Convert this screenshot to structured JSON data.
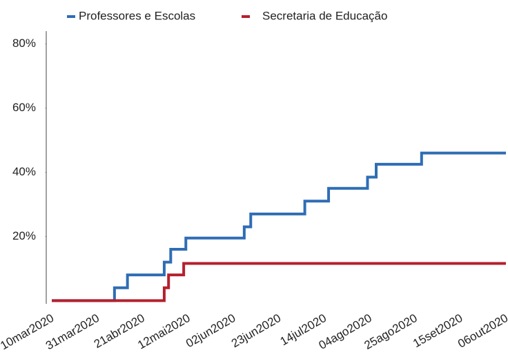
{
  "chart_data": {
    "type": "step",
    "step": "post",
    "series": [
      {
        "name": "Professores e Escolas",
        "color": "#2f6db5",
        "x": [
          "2020-03-10",
          "2020-04-08",
          "2020-04-14",
          "2020-05-01",
          "2020-05-04",
          "2020-05-11",
          "2020-06-07",
          "2020-06-10",
          "2020-07-05",
          "2020-07-16",
          "2020-08-03",
          "2020-08-07",
          "2020-08-28",
          "2020-10-06"
        ],
        "values": [
          0,
          4,
          8,
          12,
          16,
          19.5,
          23,
          27,
          31,
          35,
          38.5,
          42.5,
          46,
          46
        ]
      },
      {
        "name": "Secretaria de Educação",
        "color": "#b5202e",
        "x": [
          "2020-03-10",
          "2020-05-01",
          "2020-05-03",
          "2020-05-10",
          "2020-10-06"
        ],
        "values": [
          0,
          4,
          8,
          11.6,
          11.6
        ]
      }
    ],
    "xlim": [
      "2020-03-10",
      "2020-10-06"
    ],
    "xticks": [
      {
        "value": "2020-03-10",
        "label": "10mar2020"
      },
      {
        "value": "2020-03-31",
        "label": "31mar2020"
      },
      {
        "value": "2020-04-21",
        "label": "21abr2020"
      },
      {
        "value": "2020-05-12",
        "label": "12mai2020"
      },
      {
        "value": "2020-06-02",
        "label": "02jun2020"
      },
      {
        "value": "2020-06-23",
        "label": "23jun2020"
      },
      {
        "value": "2020-07-14",
        "label": "14jul2020"
      },
      {
        "value": "2020-08-04",
        "label": "04ago2020"
      },
      {
        "value": "2020-08-25",
        "label": "25ago2020"
      },
      {
        "value": "2020-09-15",
        "label": "15set2020"
      },
      {
        "value": "2020-10-06",
        "label": "06out2020"
      }
    ],
    "ylim": [
      -1,
      84
    ],
    "yticks": [
      {
        "value": 20,
        "label": "20%"
      },
      {
        "value": 40,
        "label": "40%"
      },
      {
        "value": 60,
        "label": "60%"
      },
      {
        "value": 80,
        "label": "80%"
      }
    ],
    "legend": "top"
  }
}
